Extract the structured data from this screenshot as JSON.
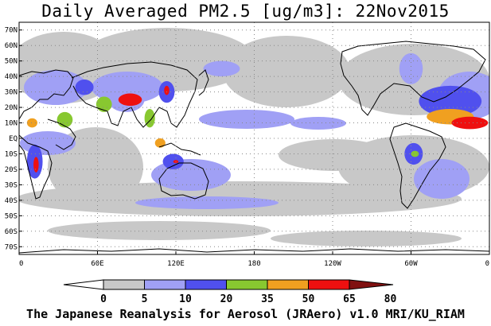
{
  "title": "Daily Averaged PM2.5 [ug/m3]: 22Nov2015",
  "credit": "The Japanese Reanalysis for Aerosol (JRAero) v1.0 MRI/KU_RIAM",
  "map": {
    "projection": "equirectangular",
    "center_longitude": 180,
    "lon_range": [
      0,
      360
    ],
    "lat_range": [
      -75,
      75
    ],
    "grid": "dotted",
    "lat_labels": [
      "70N",
      "60N",
      "50N",
      "40N",
      "30N",
      "20N",
      "10N",
      "EQ",
      "10S",
      "20S",
      "30S",
      "40S",
      "50S",
      "60S",
      "70S"
    ],
    "lat_values": [
      70,
      60,
      50,
      40,
      30,
      20,
      10,
      0,
      -10,
      -20,
      -30,
      -40,
      -50,
      -60,
      -70
    ],
    "lon_labels": [
      "0",
      "60E",
      "120E",
      "180",
      "120W",
      "60W",
      "0"
    ],
    "lon_values": [
      0,
      60,
      120,
      180,
      240,
      300,
      360
    ]
  },
  "colorbar": {
    "levels": [
      "0",
      "5",
      "10",
      "20",
      "35",
      "50",
      "65",
      "80"
    ],
    "colors": [
      "#ffffff",
      "#c8c8c8",
      "#a0a0f5",
      "#5050ee",
      "#88c830",
      "#f0a020",
      "#ee1010",
      "#801010"
    ]
  },
  "plumes": [
    {
      "lon": 330,
      "lat": 24,
      "rx": 24,
      "ry": 10,
      "level": 3
    },
    {
      "lon": 330,
      "lat": 14,
      "rx": 18,
      "ry": 5,
      "level": 5
    },
    {
      "lon": 345,
      "lat": 10,
      "rx": 14,
      "ry": 4,
      "level": 6
    },
    {
      "lon": 82,
      "lat": 25,
      "rx": 14,
      "ry": 8,
      "level": 2
    },
    {
      "lon": 85,
      "lat": 25,
      "rx": 9,
      "ry": 4,
      "level": 6
    },
    {
      "lon": 65,
      "lat": 22,
      "rx": 6,
      "ry": 5,
      "level": 4
    },
    {
      "lon": 113,
      "lat": 30,
      "rx": 6,
      "ry": 7,
      "level": 3
    },
    {
      "lon": 113,
      "lat": 31,
      "rx": 2,
      "ry": 3,
      "level": 6
    },
    {
      "lon": 12,
      "lat": -15,
      "rx": 6,
      "ry": 11,
      "level": 3
    },
    {
      "lon": 13,
      "lat": -17,
      "rx": 2,
      "ry": 5,
      "level": 6
    },
    {
      "lon": 10,
      "lat": 10,
      "rx": 4,
      "ry": 3,
      "level": 5
    },
    {
      "lon": 302,
      "lat": -10,
      "rx": 7,
      "ry": 7,
      "level": 3
    },
    {
      "lon": 303,
      "lat": -10,
      "rx": 3,
      "ry": 2,
      "level": 4
    },
    {
      "lon": 118,
      "lat": -15,
      "rx": 8,
      "ry": 5,
      "level": 3
    },
    {
      "lon": 120,
      "lat": -15,
      "rx": 2,
      "ry": 1,
      "level": 6
    },
    {
      "lon": 50,
      "lat": 33,
      "rx": 7,
      "ry": 5,
      "level": 3
    },
    {
      "lon": 35,
      "lat": 12,
      "rx": 6,
      "ry": 5,
      "level": 4
    },
    {
      "lon": 100,
      "lat": 13,
      "rx": 4,
      "ry": 6,
      "level": 4
    },
    {
      "lon": 108,
      "lat": -3,
      "rx": 4,
      "ry": 3,
      "level": 5
    },
    {
      "lon": 155,
      "lat": 45,
      "rx": 14,
      "ry": 5,
      "level": 2
    },
    {
      "lon": 300,
      "lat": 45,
      "rx": 9,
      "ry": 10,
      "level": 2
    }
  ]
}
